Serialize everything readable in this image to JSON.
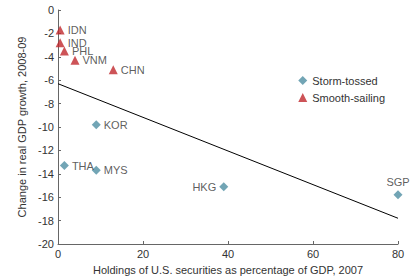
{
  "chart_data": {
    "type": "scatter",
    "x_label": "Holdings of U.S. securities as percentage of GDP, 2007",
    "y_label": "Change in real GDP growth, 2008-09",
    "xlim": [
      0,
      80
    ],
    "xticks": [
      0,
      20,
      40,
      60,
      80
    ],
    "ylim": [
      -20,
      0
    ],
    "yticks": [
      -20,
      -18,
      -16,
      -14,
      -12,
      -10,
      -8,
      -6,
      -4,
      -2,
      0
    ],
    "grid": false,
    "legend": "upper right",
    "series": [
      {
        "name": "Storm-tossed",
        "color": "#4f8fa3",
        "marker": "diamond",
        "labels": [
          "KOR",
          "THA",
          "MYS",
          "HKG",
          "SGP"
        ],
        "x": [
          9,
          1.5,
          9,
          39,
          80
        ],
        "values": [
          -9.8,
          -13.3,
          -13.7,
          -15.1,
          -15.8
        ]
      },
      {
        "name": "Smooth-sailing",
        "color": "#c0282d",
        "marker": "triangle",
        "labels": [
          "IDN",
          "IND",
          "PHL",
          "VNM",
          "CHN"
        ],
        "x": [
          0.5,
          0.5,
          1.5,
          4,
          13
        ],
        "values": [
          -1.7,
          -2.8,
          -3.5,
          -4.3,
          -5.1
        ]
      }
    ],
    "trend_line": {
      "color": "#000000",
      "x": [
        0,
        80
      ],
      "values": [
        -6.3,
        -17.8
      ]
    }
  }
}
